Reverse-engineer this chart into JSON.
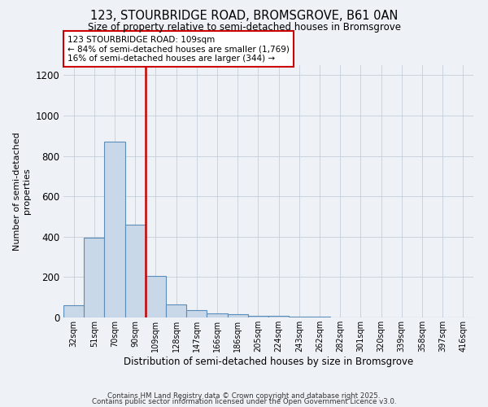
{
  "title1": "123, STOURBRIDGE ROAD, BROMSGROVE, B61 0AN",
  "title2": "Size of property relative to semi-detached houses in Bromsgrove",
  "xlabel": "Distribution of semi-detached houses by size in Bromsgrove",
  "ylabel": "Number of semi-detached\nproperties",
  "categories": [
    "32sqm",
    "51sqm",
    "70sqm",
    "90sqm",
    "109sqm",
    "128sqm",
    "147sqm",
    "166sqm",
    "186sqm",
    "205sqm",
    "224sqm",
    "243sqm",
    "262sqm",
    "282sqm",
    "301sqm",
    "320sqm",
    "339sqm",
    "358sqm",
    "397sqm",
    "416sqm"
  ],
  "values": [
    60,
    395,
    870,
    460,
    205,
    65,
    35,
    20,
    15,
    10,
    8,
    5,
    3,
    2,
    1,
    1,
    1,
    0,
    0,
    0
  ],
  "bar_color": "#c8d8e8",
  "bar_edge_color": "#5b8db8",
  "red_line_index": 4,
  "red_line_color": "#cc0000",
  "annotation_text": "123 STOURBRIDGE ROAD: 109sqm\n← 84% of semi-detached houses are smaller (1,769)\n16% of semi-detached houses are larger (344) →",
  "annotation_box_color": "#ffffff",
  "annotation_box_edge": "#cc0000",
  "footer1": "Contains HM Land Registry data © Crown copyright and database right 2025.",
  "footer2": "Contains public sector information licensed under the Open Government Licence v3.0.",
  "bg_color": "#eef2f7",
  "ylim": [
    0,
    1250
  ],
  "yticks": [
    0,
    200,
    400,
    600,
    800,
    1000,
    1200
  ]
}
